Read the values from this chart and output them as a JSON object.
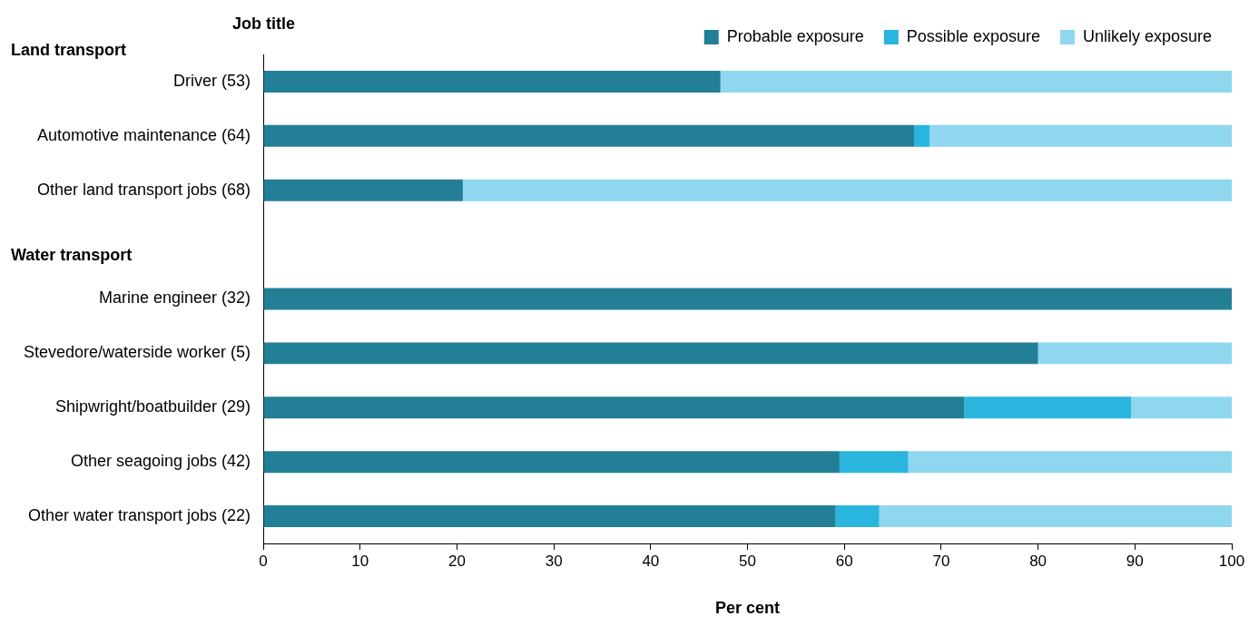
{
  "chart_data": {
    "type": "bar",
    "orientation": "horizontal",
    "stacked": true,
    "ylabel": "Job title",
    "xlabel": "Per cent",
    "categories": [
      "Driver (53)",
      "Automotive maintenance (64)",
      "Other land transport jobs (68)",
      null,
      "Marine engineer (32)",
      "Stevedore/waterside worker (5)",
      "Shipwright/boatbuilder (29)",
      "Other seagoing jobs (42)",
      "Other water transport jobs (22)"
    ],
    "series": [
      {
        "name": "Probable exposure",
        "color": "#237f96",
        "values": [
          47.2,
          67.2,
          20.6,
          null,
          100,
          80,
          72.4,
          59.5,
          59.1
        ]
      },
      {
        "name": "Possible exposure",
        "color": "#29b5dd",
        "values": [
          0,
          1.6,
          0,
          null,
          0,
          0,
          17.2,
          7.1,
          4.5
        ]
      },
      {
        "name": "Unlikely exposure",
        "color": "#8ed7ef",
        "values": [
          52.8,
          31.2,
          79.4,
          null,
          0,
          20,
          10.4,
          33.4,
          36.4
        ]
      }
    ],
    "xlim": [
      0,
      100
    ],
    "xticks": [
      0,
      10,
      20,
      30,
      40,
      50,
      60,
      70,
      80,
      90,
      100
    ],
    "grid": false,
    "legend": "top right",
    "annotations": [
      "Land transport",
      "Water transport"
    ]
  }
}
